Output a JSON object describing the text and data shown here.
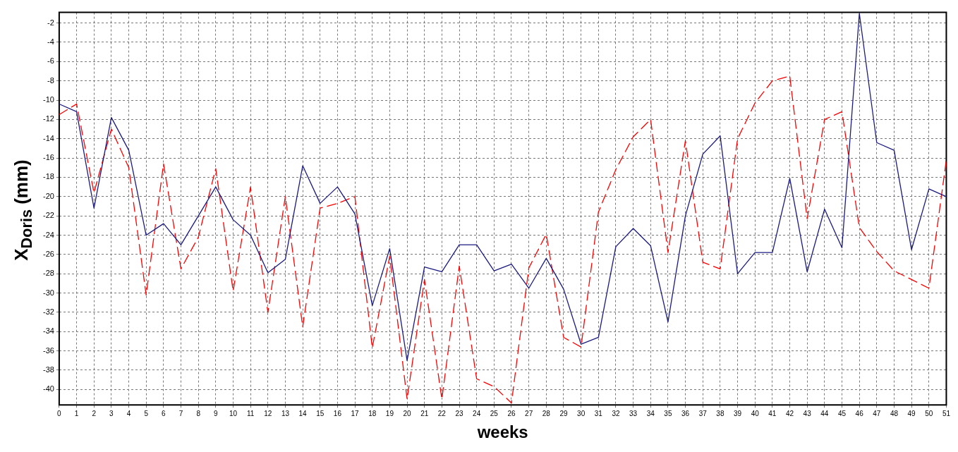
{
  "chart_data": {
    "type": "line",
    "xlabel": "weeks",
    "ylabel": "X$_{Doris}$ (mm)",
    "x": [
      0,
      1,
      2,
      3,
      4,
      5,
      6,
      7,
      8,
      9,
      10,
      11,
      12,
      13,
      14,
      15,
      16,
      17,
      18,
      19,
      20,
      21,
      22,
      23,
      24,
      25,
      26,
      27,
      28,
      29,
      30,
      31,
      32,
      33,
      34,
      35,
      36,
      37,
      38,
      39,
      40,
      41,
      42,
      43,
      44,
      45,
      46,
      47,
      48,
      49,
      50,
      51
    ],
    "series": [
      {
        "color": "#1a1a80",
        "line_style": "solid",
        "values": [
          -10.4,
          -11.2,
          -21.2,
          -11.8,
          -15.2,
          -24,
          -22.8,
          -25,
          -22,
          -19,
          -22.4,
          -24,
          -27.9,
          -26.5,
          -16.8,
          -20.7,
          -19,
          -21.8,
          -31.3,
          -25.4,
          -37,
          -27.3,
          -27.8,
          -25,
          -25,
          -27.7,
          -27,
          -29.5,
          -26.4,
          -29.6,
          -35.3,
          -34.6,
          -25.2,
          -23.3,
          -25.1,
          -33,
          -22,
          -15.6,
          -13.7,
          -28,
          -25.8,
          -25.8,
          -18.1,
          -27.8,
          -21.3,
          -25.3,
          -1,
          -14.4,
          -15.2,
          -25.5,
          -19.2,
          -20
        ]
      },
      {
        "color": "#ff0000",
        "line_style": "dashed",
        "values": [
          -11.5,
          -10.4,
          -19.6,
          -13,
          -17,
          -30.2,
          -16.6,
          -27.5,
          -24.2,
          -17.1,
          -29.8,
          -19,
          -32,
          -20,
          -33.5,
          -21.2,
          -20.7,
          -20,
          -35.7,
          -26.2,
          -41,
          -28.6,
          -41,
          -27.2,
          -38.9,
          -39.7,
          -41.4,
          -27.4,
          -23.9,
          -34.6,
          -35.6,
          -21.6,
          -17.2,
          -13.8,
          -12,
          -25.8,
          -14.2,
          -26.8,
          -27.5,
          -14,
          -10.3,
          -8,
          -7.5,
          -22.3,
          -12,
          -11.2,
          -23.2,
          -25.7,
          -27.7,
          -28.6,
          -29.5,
          -16.2
        ]
      }
    ],
    "xlim": [
      0,
      51
    ],
    "xticks": [
      0,
      1,
      2,
      3,
      4,
      5,
      6,
      7,
      8,
      9,
      10,
      11,
      12,
      13,
      14,
      15,
      16,
      17,
      18,
      19,
      20,
      21,
      22,
      23,
      24,
      25,
      26,
      27,
      28,
      29,
      30,
      31,
      32,
      33,
      34,
      35,
      36,
      37,
      38,
      39,
      40,
      41,
      42,
      43,
      44,
      45,
      46,
      47,
      48,
      49,
      50,
      51
    ],
    "ylim": [
      -41.6,
      -0.9
    ],
    "yticks": [
      -40,
      -38,
      -36,
      -34,
      -32,
      -30,
      -28,
      -26,
      -24,
      -22,
      -20,
      -18,
      -16,
      -14,
      -12,
      -10,
      -8,
      -6,
      -4,
      -2
    ],
    "grid": true,
    "legend": false,
    "marker": "none"
  }
}
